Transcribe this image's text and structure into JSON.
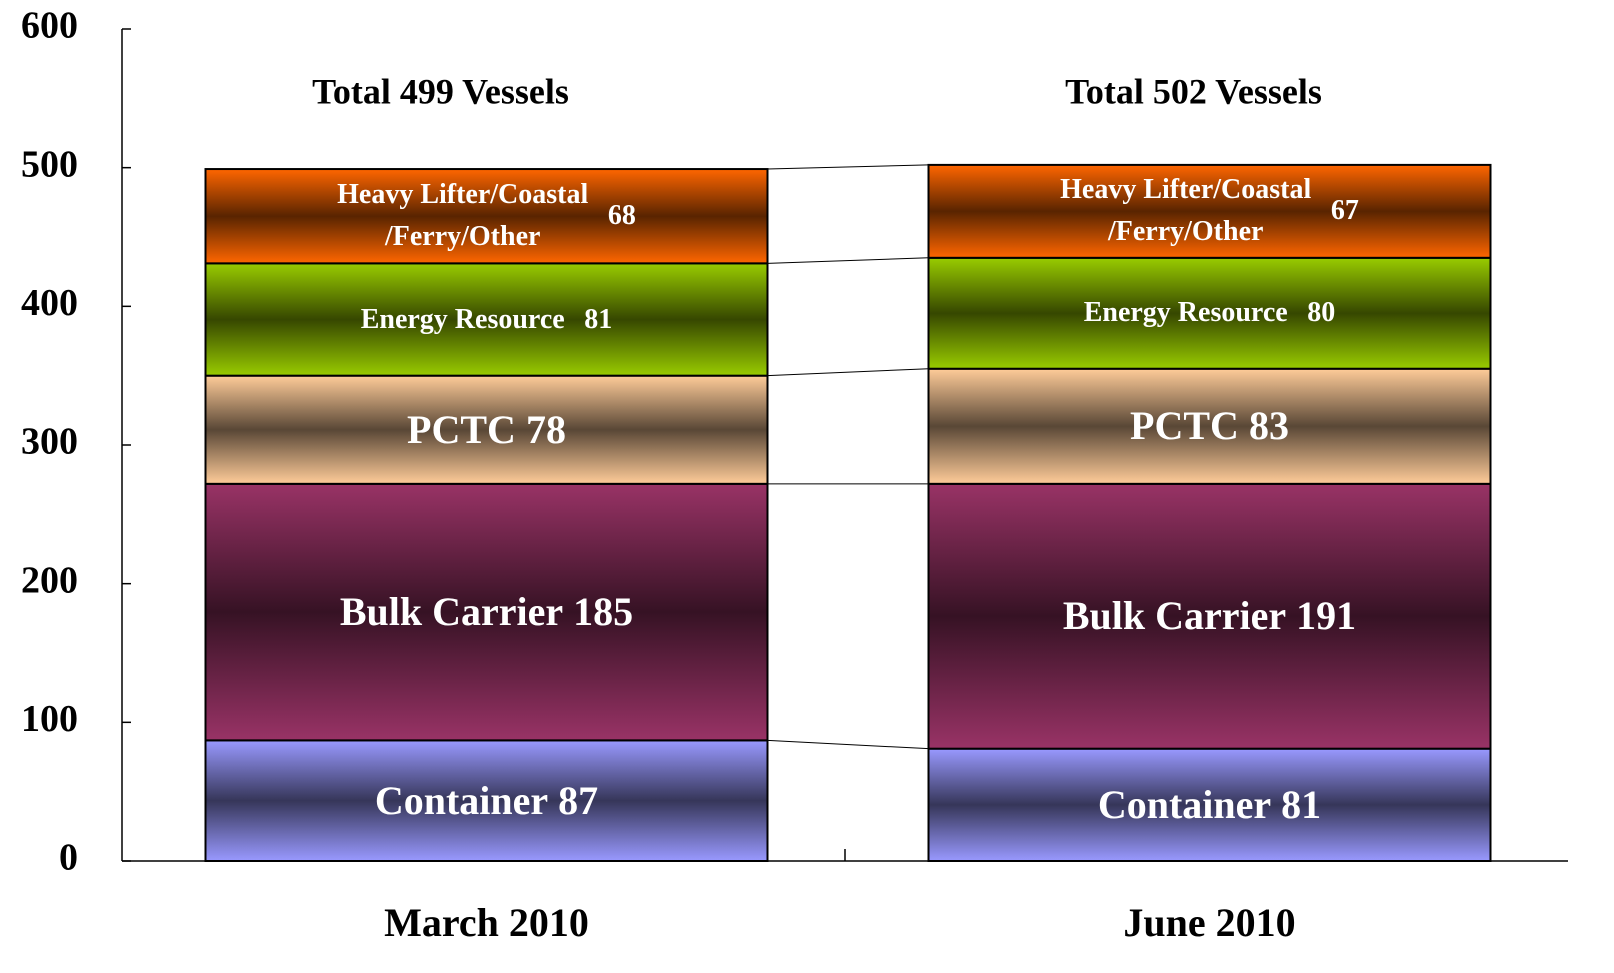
{
  "chart_data": {
    "type": "stacked_bar",
    "categories": [
      "March 2010",
      "June 2010"
    ],
    "series": [
      {
        "name": "Container",
        "color": "#9999ff",
        "values": [
          87,
          81
        ]
      },
      {
        "name": "Bulk Carrier",
        "color": "#993366",
        "values": [
          185,
          191
        ]
      },
      {
        "name": "PCTC",
        "color": "#ffcc99",
        "values": [
          78,
          83
        ]
      },
      {
        "name": "Energy Resource",
        "color": "#99cc00",
        "values": [
          81,
          80
        ]
      },
      {
        "name": "Heavy Lifter/Coastal\n/Ferry/Other",
        "color": "#ff6600",
        "values": [
          68,
          67
        ]
      }
    ],
    "annotations": [
      "Total 499 Vessels",
      "Total 502 Vessels"
    ],
    "ylim": [
      0,
      600
    ],
    "yticks": [
      0,
      100,
      200,
      300,
      400,
      500,
      600
    ]
  }
}
